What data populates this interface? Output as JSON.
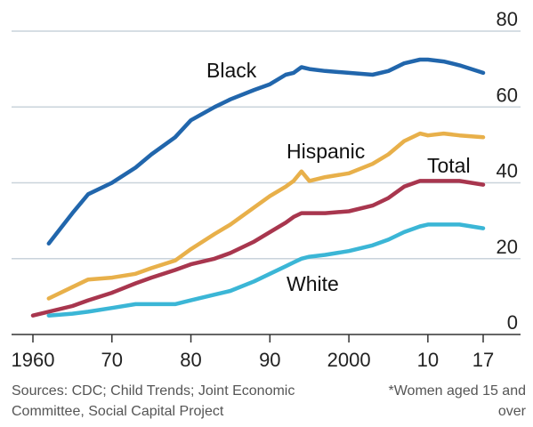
{
  "chart_data": {
    "type": "line",
    "title": "",
    "xlabel": "",
    "ylabel": "",
    "xlim": [
      1958,
      2019
    ],
    "ylim": [
      0,
      80
    ],
    "y_ticks": [
      0,
      20,
      40,
      60,
      80
    ],
    "y_tick_labels": [
      "0",
      "20",
      "40",
      "60",
      "80"
    ],
    "x_ticks": [
      1960,
      1970,
      1980,
      1990,
      2000,
      2010,
      2017
    ],
    "x_tick_labels": [
      "1960",
      "70",
      "80",
      "90",
      "2000",
      "10",
      "17"
    ],
    "grid": "horizontal",
    "legend": "direct labels on lines",
    "series": [
      {
        "name": "Black",
        "color": "#2166ac",
        "x": [
          1962,
          1965,
          1967,
          1970,
          1973,
          1975,
          1978,
          1980,
          1983,
          1985,
          1988,
          1990,
          1992,
          1993,
          1994,
          1995,
          1997,
          2000,
          2003,
          2005,
          2007,
          2009,
          2010,
          2012,
          2014,
          2017
        ],
        "y": [
          24,
          32,
          37,
          40,
          44,
          47.5,
          52,
          56.5,
          60,
          62,
          64.5,
          66,
          68.5,
          69,
          70.5,
          70,
          69.5,
          69,
          68.5,
          69.5,
          71.5,
          72.5,
          72.5,
          72,
          71,
          69
        ]
      },
      {
        "name": "Hispanic",
        "color": "#e8b04a",
        "x": [
          1962,
          1965,
          1967,
          1970,
          1973,
          1975,
          1978,
          1980,
          1983,
          1985,
          1988,
          1990,
          1992,
          1993,
          1994,
          1995,
          1997,
          2000,
          2003,
          2005,
          2007,
          2009,
          2010,
          2012,
          2014,
          2017
        ],
        "y": [
          9.5,
          12.5,
          14.5,
          15,
          16,
          17.5,
          19.5,
          22.5,
          26.5,
          29,
          33.5,
          36.5,
          39,
          40.5,
          43,
          40.5,
          41.5,
          42.5,
          45,
          47.5,
          51,
          53,
          52.5,
          53,
          52.5,
          52
        ]
      },
      {
        "name": "Total",
        "color": "#a8364e",
        "x": [
          1960,
          1965,
          1967,
          1970,
          1973,
          1975,
          1978,
          1980,
          1983,
          1985,
          1988,
          1990,
          1992,
          1993,
          1994,
          1995,
          1997,
          2000,
          2003,
          2005,
          2007,
          2009,
          2010,
          2012,
          2014,
          2017
        ],
        "y": [
          5,
          7.5,
          9,
          11,
          13.5,
          15,
          17,
          18.5,
          20,
          21.5,
          24.5,
          27,
          29.5,
          31,
          32,
          32,
          32,
          32.5,
          34,
          36,
          39,
          40.5,
          40.5,
          40.5,
          40.5,
          39.5
        ]
      },
      {
        "name": "White",
        "color": "#3bb6d6",
        "x": [
          1962,
          1965,
          1967,
          1970,
          1973,
          1975,
          1978,
          1980,
          1983,
          1985,
          1988,
          1990,
          1992,
          1993,
          1994,
          1995,
          1997,
          2000,
          2003,
          2005,
          2007,
          2009,
          2010,
          2012,
          2014,
          2017
        ],
        "y": [
          5,
          5.5,
          6,
          7,
          8,
          8,
          8,
          9,
          10.5,
          11.5,
          14,
          16,
          18,
          19,
          20,
          20.5,
          21,
          22,
          23.5,
          25,
          27,
          28.5,
          29,
          29,
          29,
          28
        ]
      }
    ]
  },
  "notes": {
    "sources": "Sources: CDC; Child Trends; Joint Economic Committee, Social Capital Project",
    "footnote": "*Women aged 15 and over"
  }
}
